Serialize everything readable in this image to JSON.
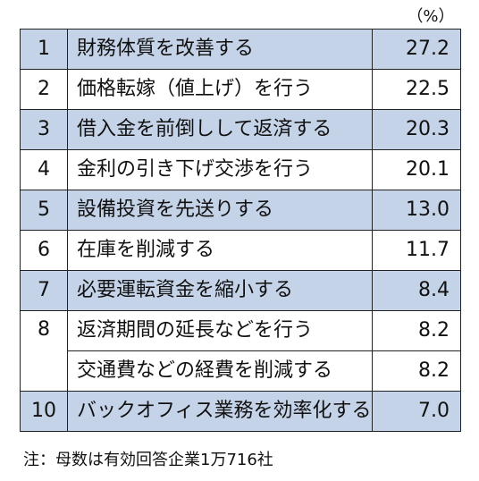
{
  "unit_label": "（%）",
  "rows": [
    {
      "rank": "1",
      "label": "財務体質を改善する",
      "value": "27.2"
    },
    {
      "rank": "2",
      "label": "価格転嫁（値上げ）を行う",
      "value": "22.5"
    },
    {
      "rank": "3",
      "label": "借入金を前倒しして返済する",
      "value": "20.3"
    },
    {
      "rank": "4",
      "label": "金利の引き下げ交渉を行う",
      "value": "20.1"
    },
    {
      "rank": "5",
      "label": "設備投資を先送りする",
      "value": "13.0"
    },
    {
      "rank": "6",
      "label": "在庫を削減する",
      "value": "11.7"
    },
    {
      "rank": "7",
      "label": "必要運転資金を縮小する",
      "value": "8.4"
    },
    {
      "rank": "8",
      "label": "返済期間の延長などを行う",
      "value": "8.2"
    },
    {
      "rank": "",
      "label": "交通費などの経費を削減する",
      "value": "8.2"
    },
    {
      "rank": "10",
      "label": "バックオフィス業務を効率化する",
      "value": "7.0"
    }
  ],
  "note": "注：母数は有効回答企業1万716社",
  "colors": {
    "shaded_row": "#c5d3e8",
    "border": "#222222"
  }
}
